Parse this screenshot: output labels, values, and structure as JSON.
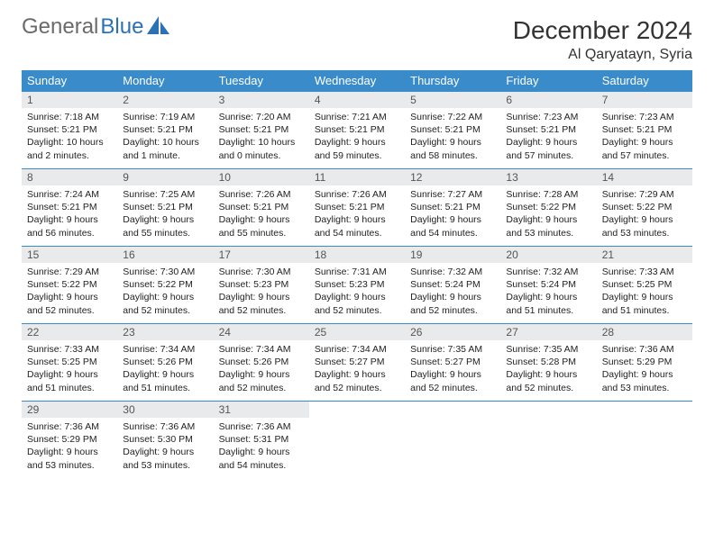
{
  "logo": {
    "text1": "General",
    "text2": "Blue"
  },
  "title": "December 2024",
  "location": "Al Qaryatayn, Syria",
  "colors": {
    "header_bg": "#3a8bc9",
    "header_text": "#ffffff",
    "daynum_bg": "#e9eaeb",
    "border": "#3a8bc9",
    "logo_gray": "#6a6a6a",
    "logo_blue": "#2a72b5",
    "page_bg": "#ffffff"
  },
  "weekdays": [
    "Sunday",
    "Monday",
    "Tuesday",
    "Wednesday",
    "Thursday",
    "Friday",
    "Saturday"
  ],
  "weeks": [
    [
      {
        "n": "1",
        "sr": "7:18 AM",
        "ss": "5:21 PM",
        "dl": "10 hours and 2 minutes."
      },
      {
        "n": "2",
        "sr": "7:19 AM",
        "ss": "5:21 PM",
        "dl": "10 hours and 1 minute."
      },
      {
        "n": "3",
        "sr": "7:20 AM",
        "ss": "5:21 PM",
        "dl": "10 hours and 0 minutes."
      },
      {
        "n": "4",
        "sr": "7:21 AM",
        "ss": "5:21 PM",
        "dl": "9 hours and 59 minutes."
      },
      {
        "n": "5",
        "sr": "7:22 AM",
        "ss": "5:21 PM",
        "dl": "9 hours and 58 minutes."
      },
      {
        "n": "6",
        "sr": "7:23 AM",
        "ss": "5:21 PM",
        "dl": "9 hours and 57 minutes."
      },
      {
        "n": "7",
        "sr": "7:23 AM",
        "ss": "5:21 PM",
        "dl": "9 hours and 57 minutes."
      }
    ],
    [
      {
        "n": "8",
        "sr": "7:24 AM",
        "ss": "5:21 PM",
        "dl": "9 hours and 56 minutes."
      },
      {
        "n": "9",
        "sr": "7:25 AM",
        "ss": "5:21 PM",
        "dl": "9 hours and 55 minutes."
      },
      {
        "n": "10",
        "sr": "7:26 AM",
        "ss": "5:21 PM",
        "dl": "9 hours and 55 minutes."
      },
      {
        "n": "11",
        "sr": "7:26 AM",
        "ss": "5:21 PM",
        "dl": "9 hours and 54 minutes."
      },
      {
        "n": "12",
        "sr": "7:27 AM",
        "ss": "5:21 PM",
        "dl": "9 hours and 54 minutes."
      },
      {
        "n": "13",
        "sr": "7:28 AM",
        "ss": "5:22 PM",
        "dl": "9 hours and 53 minutes."
      },
      {
        "n": "14",
        "sr": "7:29 AM",
        "ss": "5:22 PM",
        "dl": "9 hours and 53 minutes."
      }
    ],
    [
      {
        "n": "15",
        "sr": "7:29 AM",
        "ss": "5:22 PM",
        "dl": "9 hours and 52 minutes."
      },
      {
        "n": "16",
        "sr": "7:30 AM",
        "ss": "5:22 PM",
        "dl": "9 hours and 52 minutes."
      },
      {
        "n": "17",
        "sr": "7:30 AM",
        "ss": "5:23 PM",
        "dl": "9 hours and 52 minutes."
      },
      {
        "n": "18",
        "sr": "7:31 AM",
        "ss": "5:23 PM",
        "dl": "9 hours and 52 minutes."
      },
      {
        "n": "19",
        "sr": "7:32 AM",
        "ss": "5:24 PM",
        "dl": "9 hours and 52 minutes."
      },
      {
        "n": "20",
        "sr": "7:32 AM",
        "ss": "5:24 PM",
        "dl": "9 hours and 51 minutes."
      },
      {
        "n": "21",
        "sr": "7:33 AM",
        "ss": "5:25 PM",
        "dl": "9 hours and 51 minutes."
      }
    ],
    [
      {
        "n": "22",
        "sr": "7:33 AM",
        "ss": "5:25 PM",
        "dl": "9 hours and 51 minutes."
      },
      {
        "n": "23",
        "sr": "7:34 AM",
        "ss": "5:26 PM",
        "dl": "9 hours and 51 minutes."
      },
      {
        "n": "24",
        "sr": "7:34 AM",
        "ss": "5:26 PM",
        "dl": "9 hours and 52 minutes."
      },
      {
        "n": "25",
        "sr": "7:34 AM",
        "ss": "5:27 PM",
        "dl": "9 hours and 52 minutes."
      },
      {
        "n": "26",
        "sr": "7:35 AM",
        "ss": "5:27 PM",
        "dl": "9 hours and 52 minutes."
      },
      {
        "n": "27",
        "sr": "7:35 AM",
        "ss": "5:28 PM",
        "dl": "9 hours and 52 minutes."
      },
      {
        "n": "28",
        "sr": "7:36 AM",
        "ss": "5:29 PM",
        "dl": "9 hours and 53 minutes."
      }
    ],
    [
      {
        "n": "29",
        "sr": "7:36 AM",
        "ss": "5:29 PM",
        "dl": "9 hours and 53 minutes."
      },
      {
        "n": "30",
        "sr": "7:36 AM",
        "ss": "5:30 PM",
        "dl": "9 hours and 53 minutes."
      },
      {
        "n": "31",
        "sr": "7:36 AM",
        "ss": "5:31 PM",
        "dl": "9 hours and 54 minutes."
      },
      null,
      null,
      null,
      null
    ]
  ],
  "labels": {
    "sunrise": "Sunrise: ",
    "sunset": "Sunset: ",
    "daylight": "Daylight: "
  }
}
